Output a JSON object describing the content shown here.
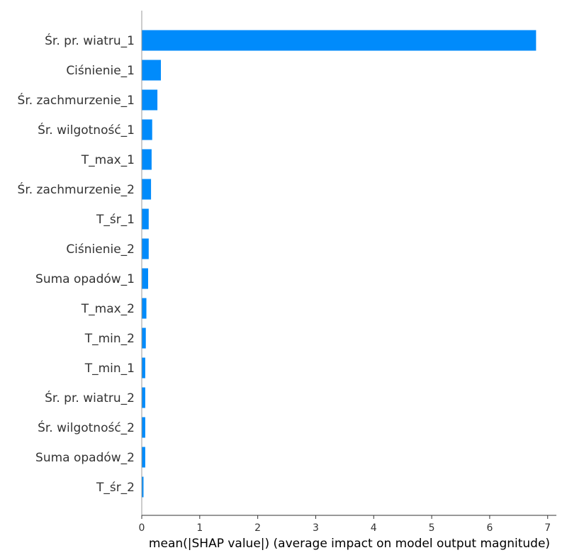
{
  "chart_data": {
    "type": "bar",
    "orientation": "horizontal",
    "categories": [
      "Śr. pr. wiatru_1",
      "Ciśnienie_1",
      "Śr. zachmurzenie_1",
      "Śr. wilgotność_1",
      "T_max_1",
      "Śr. zachmurzenie_2",
      "T_śr_1",
      "Ciśnienie_2",
      "Suma opadów_1",
      "T_max_2",
      "T_min_2",
      "T_min_1",
      "Śr. pr. wiatru_2",
      "Śr. wilgotność_2",
      "Suma opadów_2",
      "T_śr_2"
    ],
    "values": [
      6.8,
      0.33,
      0.27,
      0.18,
      0.17,
      0.16,
      0.12,
      0.12,
      0.11,
      0.08,
      0.07,
      0.06,
      0.06,
      0.06,
      0.06,
      0.03
    ],
    "xlabel": "mean(|SHAP value|) (average impact on model output magnitude)",
    "ylabel": "",
    "title": "",
    "xlim": [
      0,
      7.15
    ],
    "xticks": [
      "0",
      "1",
      "2",
      "3",
      "4",
      "5",
      "6",
      "7"
    ],
    "bar_color": "#008bfb",
    "grid": false,
    "legend": "none"
  }
}
